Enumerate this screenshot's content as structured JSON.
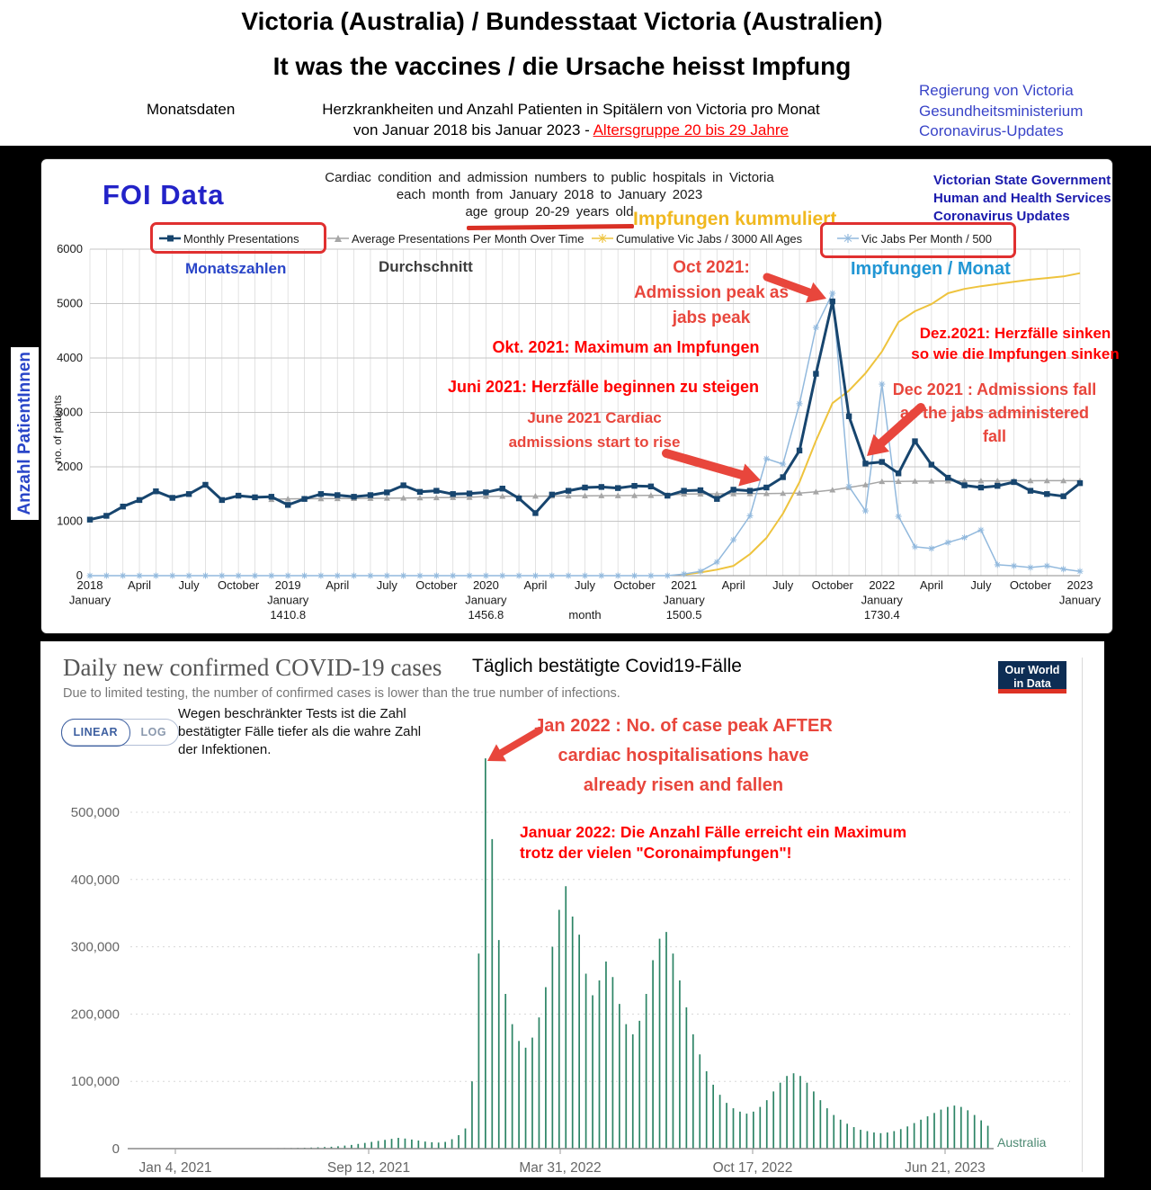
{
  "header": {
    "title_line1": "Victoria (Australia) / Bundesstaat Victoria (Australien)",
    "title_line2": "It was the vaccines / die Ursache heisst Impfung",
    "monatsdaten": "Monatsdaten",
    "subtitle_line1": "Herzkrankheiten und Anzahl Patienten in Spitälern von Victoria pro Monat",
    "subtitle_line2_prefix": "von Januar 2018 bis Januar 2023 - ",
    "subtitle_line2_red": "Altersgruppe 20 bis 29 Jahre",
    "gov_lines": "Regierung von Victoria\nGesundheitsministerium\nCoronavirus-Updates"
  },
  "side_label": "Anzahl PatientInnen",
  "foi": {
    "brand": "FOI Data",
    "title_lines": [
      "Cardiac condition and admission numbers to public hospitals in Victoria",
      "each month from January 2018 to January 2023",
      "age group 20-29 years old"
    ],
    "vsg_lines": "Victorian State Government\nHuman and Health Services\nCoronavirus Updates",
    "impfungen_kummuliert": "Impfungen kummuliert",
    "labels": {
      "monatszahlen": "Monatszahlen",
      "durchschnitt": "Durchschnitt",
      "impfungen_monat": "Impfungen / Monat"
    },
    "annotations": {
      "oct_en": "Oct 2021:\nAdmission peak as\njabs peak",
      "okt_de": "Okt. 2021: Maximum an Impfungen",
      "juni_de": "Juni 2021: Herzfälle beginnen zu steigen",
      "june_en": "June 2021 Cardiac\nadmissions start to rise",
      "dez_de": "Dez.2021: Herzfälle sinken\nso wie die Impfungen sinken",
      "dec_en": "Dec 2021 : Admissions fall\nas the jabs administered\nfall"
    }
  },
  "owid": {
    "title": "Daily new confirmed COVID-19 cases",
    "title_de": "Täglich bestätigte Covid19-Fälle",
    "subtitle": "Due to limited testing, the number of confirmed cases is lower than the true number of infections.",
    "note_de": "Wegen beschränkter Tests ist die Zahl\nbestätigter Fälle tiefer als die wahre Zahl\nder Infektionen.",
    "logo_line1": "Our World",
    "logo_line2": "in Data",
    "btn_linear": "LINEAR",
    "btn_log": "LOG",
    "annotations": {
      "jan_en": "Jan 2022 : No. of case peak AFTER\ncardiac hospitalisations have\nalready risen and fallen",
      "jan_de": "Januar 2022: Die Anzahl Fälle erreicht ein Maximum\ntrotz der vielen \"Coronaimpfungen\"!"
    }
  },
  "colors": {
    "annotation_soft_red": "#e8463c",
    "annotation_pure_red": "#ff0000",
    "monthly_navy": "#17456e",
    "avg_gray": "#a6a6a6",
    "cum_yellow": "#eec33d",
    "jabs_light_blue": "#92b9dd",
    "owid_bar_green": "#2c8465",
    "owid_navy": "#0d2d54",
    "owid_red": "#dd3224"
  },
  "chart_data": [
    {
      "type": "line",
      "title": "Cardiac condition and admission numbers to public hospitals in Victoria each month from January 2018 to January 2023, age group 20-29 years old",
      "xlabel": "month",
      "ylabel": "no. of patients",
      "ylim": [
        0,
        6000
      ],
      "ytick_step": 1000,
      "months": 61,
      "x_start": "2018-01",
      "x_end": "2023-01",
      "grid": true,
      "ticks": [
        {
          "m": 0,
          "lines": [
            "2018",
            "January"
          ]
        },
        {
          "m": 3,
          "lines": [
            "April"
          ]
        },
        {
          "m": 6,
          "lines": [
            "July"
          ]
        },
        {
          "m": 9,
          "lines": [
            "October"
          ]
        },
        {
          "m": 12,
          "lines": [
            "2019",
            "January",
            "1410.8"
          ]
        },
        {
          "m": 15,
          "lines": [
            "April"
          ]
        },
        {
          "m": 18,
          "lines": [
            "July"
          ]
        },
        {
          "m": 21,
          "lines": [
            "October"
          ]
        },
        {
          "m": 24,
          "lines": [
            "2020",
            "January",
            "1456.8"
          ]
        },
        {
          "m": 27,
          "lines": [
            "April"
          ]
        },
        {
          "m": 30,
          "lines": [
            "July"
          ]
        },
        {
          "m": 33,
          "lines": [
            "October"
          ]
        },
        {
          "m": 36,
          "lines": [
            "2021",
            "January",
            "1500.5"
          ]
        },
        {
          "m": 39,
          "lines": [
            "April"
          ]
        },
        {
          "m": 42,
          "lines": [
            "July"
          ]
        },
        {
          "m": 45,
          "lines": [
            "October"
          ]
        },
        {
          "m": 48,
          "lines": [
            "2022",
            "January",
            "1730.4"
          ]
        },
        {
          "m": 51,
          "lines": [
            "April"
          ]
        },
        {
          "m": 54,
          "lines": [
            "July"
          ]
        },
        {
          "m": 57,
          "lines": [
            "October"
          ]
        },
        {
          "m": 60,
          "lines": [
            "2023",
            "January"
          ]
        }
      ],
      "series": [
        {
          "name": "Monthly Presentations",
          "color": "#17456e",
          "marker": "square",
          "width": 3,
          "values": [
            1030,
            1100,
            1270,
            1390,
            1550,
            1430,
            1500,
            1670,
            1390,
            1470,
            1440,
            1450,
            1300,
            1410,
            1500,
            1480,
            1450,
            1480,
            1530,
            1660,
            1540,
            1560,
            1500,
            1510,
            1530,
            1600,
            1420,
            1150,
            1490,
            1560,
            1620,
            1630,
            1610,
            1650,
            1640,
            1470,
            1560,
            1570,
            1410,
            1580,
            1560,
            1620,
            1810,
            2300,
            3710,
            5040,
            2930,
            2060,
            2090,
            1880,
            2470,
            2040,
            1800,
            1660,
            1620,
            1650,
            1720,
            1560,
            1500,
            1460,
            1700
          ]
        },
        {
          "name": "Average Presentations Per Month Over Time",
          "color": "#a6a6a6",
          "marker": "triangle",
          "width": 1.5,
          "values": [
            null,
            null,
            null,
            null,
            null,
            null,
            null,
            null,
            null,
            null,
            null,
            1400,
            1411,
            1413,
            1415,
            1417,
            1419,
            1421,
            1424,
            1427,
            1430,
            1433,
            1436,
            1440,
            1457,
            1459,
            1461,
            1462,
            1463,
            1465,
            1467,
            1469,
            1471,
            1473,
            1475,
            1478,
            1500,
            1502,
            1504,
            1506,
            1508,
            1510,
            1513,
            1518,
            1540,
            1575,
            1620,
            1670,
            1730,
            1733,
            1736,
            1738,
            1740,
            1741,
            1742,
            1743,
            1744,
            1744,
            1745,
            1745,
            1745
          ]
        },
        {
          "name": "Cumulative Vic Jabs / 3000 All Ages",
          "color": "#eec33d",
          "marker": "plus",
          "width": 2,
          "values": [
            null,
            null,
            null,
            null,
            null,
            null,
            null,
            null,
            null,
            null,
            null,
            null,
            null,
            null,
            null,
            null,
            null,
            null,
            null,
            null,
            null,
            null,
            null,
            null,
            null,
            null,
            null,
            null,
            null,
            null,
            null,
            null,
            null,
            null,
            null,
            null,
            20,
            60,
            110,
            180,
            395,
            695,
            1140,
            1720,
            2480,
            3170,
            3400,
            3720,
            4120,
            4660,
            4860,
            4990,
            5190,
            5270,
            5320,
            5360,
            5400,
            5440,
            5470,
            5500,
            5560
          ]
        },
        {
          "name": "Vic Jabs Per Month / 500",
          "color": "#92b9dd",
          "marker": "star",
          "width": 1.5,
          "values": [
            0,
            0,
            0,
            0,
            0,
            0,
            0,
            0,
            0,
            0,
            0,
            0,
            0,
            0,
            0,
            0,
            0,
            0,
            0,
            0,
            0,
            0,
            0,
            0,
            0,
            0,
            0,
            0,
            0,
            0,
            0,
            0,
            0,
            0,
            0,
            0,
            30,
            80,
            250,
            660,
            1100,
            2150,
            2050,
            3160,
            4560,
            5190,
            1640,
            1190,
            3520,
            1090,
            530,
            500,
            610,
            700,
            840,
            200,
            180,
            150,
            180,
            120,
            80
          ]
        }
      ],
      "legend_position": "top"
    },
    {
      "type": "bar",
      "title": "Daily new confirmed COVID-19 cases",
      "entity": "Australia",
      "bar_color": "#2c8465",
      "ylim": [
        0,
        500000
      ],
      "ytick_step": 100000,
      "x_tick_labels": [
        "Jan 4, 2021",
        "Sep 12, 2021",
        "Mar 31, 2022",
        "Oct 17, 2022",
        "Jun 21, 2023"
      ],
      "x_start": "2021-01-04",
      "sampling": "weekly peak values, Jan 2021 through mid Jul 2023",
      "weekly_peak_values": [
        300,
        250,
        300,
        350,
        300,
        280,
        300,
        320,
        300,
        280,
        300,
        350,
        400,
        380,
        350,
        400,
        450,
        500,
        550,
        600,
        650,
        700,
        750,
        800,
        900,
        1100,
        1300,
        1600,
        2000,
        2400,
        2800,
        3500,
        4500,
        5500,
        7000,
        8500,
        10000,
        11500,
        13000,
        14500,
        16000,
        15000,
        13500,
        12000,
        10500,
        9500,
        9000,
        10000,
        14000,
        20000,
        30000,
        100000,
        290000,
        580000,
        460000,
        310000,
        230000,
        185000,
        160000,
        150000,
        165000,
        195000,
        240000,
        300000,
        355000,
        390000,
        345000,
        318000,
        260000,
        228000,
        250000,
        278000,
        255000,
        215000,
        185000,
        170000,
        190000,
        230000,
        280000,
        312000,
        322000,
        290000,
        250000,
        210000,
        170000,
        140000,
        115000,
        95000,
        80000,
        68000,
        60000,
        55000,
        52000,
        55000,
        62000,
        72000,
        85000,
        98000,
        108000,
        112000,
        108000,
        98000,
        85000,
        72000,
        60000,
        50000,
        43000,
        37000,
        32000,
        28000,
        26000,
        24000,
        23000,
        24000,
        26000,
        29000,
        33000,
        38000,
        43000,
        48000,
        53000,
        58000,
        62000,
        64000,
        62000,
        57000,
        50000,
        42000,
        34000
      ]
    }
  ]
}
